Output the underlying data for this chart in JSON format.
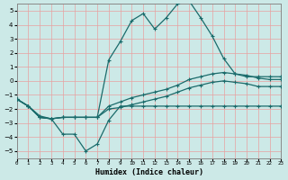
{
  "xlabel": "Humidex (Indice chaleur)",
  "xlim": [
    0,
    23
  ],
  "ylim": [
    -5.5,
    5.5
  ],
  "xticks": [
    0,
    1,
    2,
    3,
    4,
    5,
    6,
    7,
    8,
    9,
    10,
    11,
    12,
    13,
    14,
    15,
    16,
    17,
    18,
    19,
    20,
    21,
    22,
    23
  ],
  "yticks": [
    -5,
    -4,
    -3,
    -2,
    -1,
    0,
    1,
    2,
    3,
    4,
    5
  ],
  "background_color": "#cce9e7",
  "grid_color": "#e8a0a0",
  "line_color": "#1a6b6b",
  "lines": [
    [
      -1.3,
      -1.8,
      -2.6,
      -2.7,
      -3.8,
      -3.8,
      -5.0,
      -4.5,
      -2.8,
      -1.8,
      -1.8,
      -1.8,
      -1.8,
      -1.8,
      -1.8,
      -1.8,
      -1.8,
      -1.8,
      -1.8,
      -1.8,
      -1.8,
      -1.8,
      -1.8,
      -1.8
    ],
    [
      -1.3,
      -1.8,
      -2.6,
      -2.7,
      -2.6,
      -2.6,
      -2.6,
      -2.6,
      1.5,
      2.8,
      4.3,
      4.8,
      3.7,
      4.5,
      5.5,
      5.7,
      4.5,
      3.2,
      1.6,
      0.5,
      0.3,
      0.3,
      0.3,
      0.3
    ],
    [
      -1.3,
      -1.8,
      -2.5,
      -2.7,
      -2.6,
      -2.6,
      -2.6,
      -2.6,
      -1.8,
      -1.5,
      -1.2,
      -1.0,
      -0.8,
      -0.6,
      -0.3,
      0.1,
      0.3,
      0.5,
      0.6,
      0.5,
      0.4,
      0.2,
      0.1,
      0.1
    ],
    [
      -1.3,
      -1.8,
      -2.6,
      -2.7,
      -2.6,
      -2.6,
      -2.6,
      -2.6,
      -2.0,
      -1.9,
      -1.7,
      -1.5,
      -1.3,
      -1.1,
      -0.8,
      -0.5,
      -0.3,
      -0.1,
      0.0,
      -0.1,
      -0.2,
      -0.4,
      -0.4,
      -0.4
    ]
  ]
}
